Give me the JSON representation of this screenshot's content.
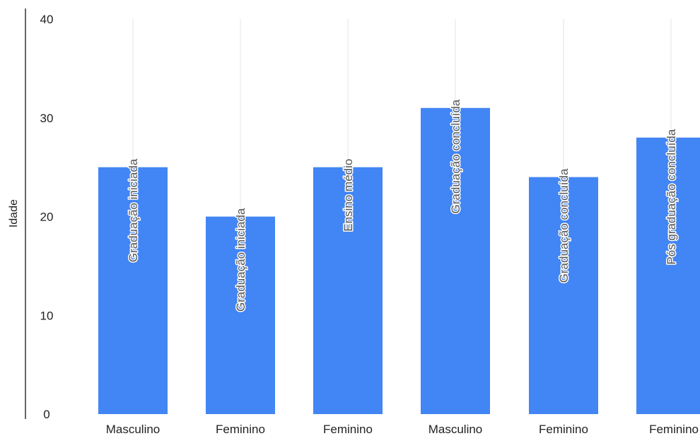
{
  "chart_data": {
    "type": "bar",
    "categories": [
      "Masculino",
      "Feminino",
      "Feminino",
      "Masculino",
      "Feminino",
      "Feminino"
    ],
    "values": [
      25,
      20,
      25,
      31,
      24,
      28
    ],
    "data_labels": [
      "Graduação iniciada",
      "Graduação iniciada",
      "Ensino médio",
      "Graduação concluída",
      "Graduação concluída",
      "Pós graduação concluída"
    ],
    "title": "",
    "xlabel": "",
    "ylabel": "Idade",
    "ylim": [
      0,
      40
    ],
    "yticks": [
      "0",
      "10",
      "20",
      "30",
      "40"
    ],
    "grid": "vertical",
    "bar_color": "#4285f4",
    "grid_color": "#e6e6e6",
    "axis_color": "#333333"
  }
}
